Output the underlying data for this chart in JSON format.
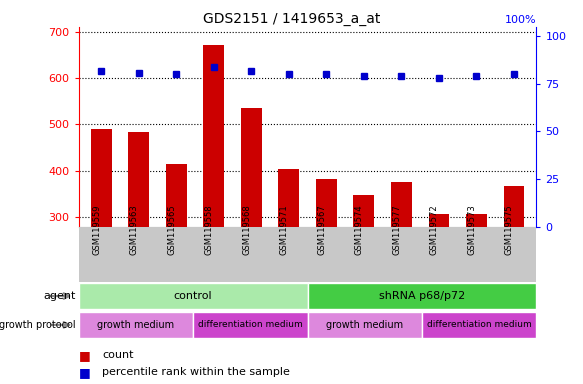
{
  "title": "GDS2151 / 1419653_a_at",
  "samples": [
    "GSM119559",
    "GSM119563",
    "GSM119565",
    "GSM119558",
    "GSM119568",
    "GSM119571",
    "GSM119567",
    "GSM119574",
    "GSM119577",
    "GSM119572",
    "GSM119573",
    "GSM119575"
  ],
  "counts": [
    490,
    483,
    415,
    670,
    535,
    405,
    383,
    348,
    375,
    308,
    308,
    368
  ],
  "percentiles": [
    82,
    81,
    80,
    84,
    82,
    80,
    80,
    79,
    79,
    78,
    79,
    80
  ],
  "ylim_left": [
    280,
    710
  ],
  "ylim_right": [
    0,
    105
  ],
  "yticks_left": [
    300,
    400,
    500,
    600,
    700
  ],
  "yticks_right": [
    0,
    25,
    50,
    75,
    100
  ],
  "bar_color": "#cc0000",
  "dot_color": "#0000cc",
  "color_light_green": "#aaeaaa",
  "color_green": "#44cc44",
  "color_light_magenta": "#dd88dd",
  "color_magenta": "#cc44cc",
  "color_gray_bg": "#c8c8c8",
  "legend_count_color": "#cc0000",
  "legend_pct_color": "#0000cc",
  "right_axis_label": "100%"
}
